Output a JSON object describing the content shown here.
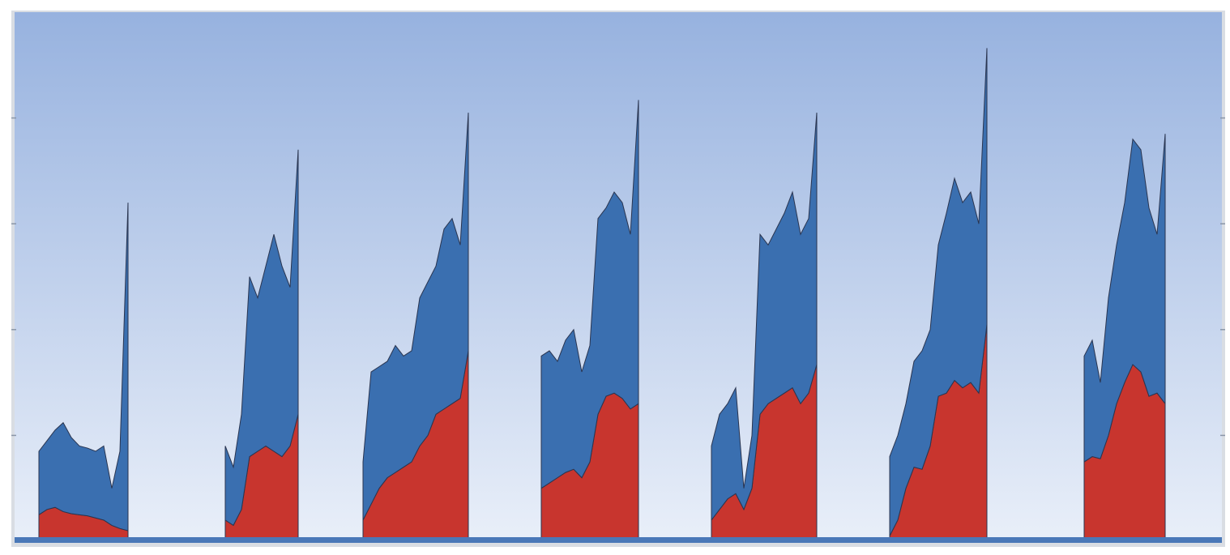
{
  "chart_data": {
    "type": "stacked-area",
    "x": [
      3,
      4,
      5,
      6,
      7,
      8,
      9,
      10,
      11,
      12,
      13,
      14,
      20,
      26,
      27,
      28,
      29,
      30,
      31,
      32,
      33,
      34,
      35,
      40,
      43,
      44,
      45,
      46,
      47,
      48,
      49,
      50,
      51,
      52,
      53,
      54,
      55,
      56,
      60,
      65,
      66,
      67,
      68,
      69,
      70,
      71,
      72,
      73,
      74,
      75,
      76,
      77,
      82,
      86,
      87,
      88,
      89,
      90,
      91,
      92,
      93,
      94,
      95,
      96,
      97,
      98,
      99,
      103,
      108,
      109,
      110,
      111,
      112,
      113,
      114,
      115,
      116,
      117,
      118,
      119,
      120,
      126,
      132,
      133,
      134,
      135,
      136,
      137,
      138,
      139,
      140,
      141,
      142
    ],
    "xlim": [
      0,
      149
    ],
    "ylim": [
      0,
      5
    ],
    "yticks": [
      1,
      2,
      3,
      4
    ],
    "series": [
      {
        "color": "#c8352e",
        "values": [
          0.25,
          0.3,
          0.32,
          0.28,
          0.26,
          0.25,
          0.24,
          0.22,
          0.2,
          0.15,
          0.12,
          0.1,
          null,
          0.2,
          0.15,
          0.3,
          0.8,
          0.85,
          0.9,
          0.85,
          0.8,
          0.9,
          1.2,
          null,
          0.2,
          0.35,
          0.5,
          0.6,
          0.65,
          0.7,
          0.75,
          0.9,
          1.0,
          1.2,
          1.25,
          1.3,
          1.35,
          1.8,
          null,
          0.5,
          0.55,
          0.6,
          0.65,
          0.68,
          0.6,
          0.75,
          1.2,
          1.37,
          1.4,
          1.35,
          1.25,
          1.3,
          null,
          0.2,
          0.3,
          0.4,
          0.45,
          0.3,
          0.5,
          1.2,
          1.3,
          1.35,
          1.4,
          1.45,
          1.3,
          1.4,
          1.67,
          null,
          0.05,
          0.2,
          0.5,
          0.7,
          0.68,
          0.9,
          1.37,
          1.4,
          1.52,
          1.45,
          1.5,
          1.4,
          2.05,
          null,
          0.75,
          0.8,
          0.78,
          1.0,
          1.3,
          1.5,
          1.67,
          1.6,
          1.37,
          1.4,
          1.3
        ]
      },
      {
        "color": "#3a6fb0",
        "values": [
          0.6,
          0.65,
          0.73,
          0.84,
          0.72,
          0.65,
          0.64,
          0.63,
          0.7,
          0.35,
          0.73,
          3.1,
          null,
          0.7,
          0.55,
          0.9,
          1.7,
          1.45,
          1.7,
          2.05,
          1.8,
          1.5,
          2.5,
          null,
          0.55,
          1.25,
          1.15,
          1.1,
          1.2,
          1.05,
          1.05,
          1.4,
          1.45,
          1.4,
          1.7,
          1.75,
          1.45,
          2.25,
          null,
          1.25,
          1.25,
          1.1,
          1.25,
          1.32,
          1.0,
          1.1,
          1.85,
          1.78,
          1.9,
          1.85,
          1.65,
          2.87,
          null,
          0.7,
          0.9,
          0.9,
          1.0,
          0.2,
          0.5,
          1.7,
          1.5,
          1.6,
          1.7,
          1.85,
          1.6,
          1.65,
          2.38,
          null,
          0.75,
          0.8,
          0.8,
          1.0,
          1.12,
          1.1,
          1.43,
          1.7,
          1.91,
          1.75,
          1.8,
          1.6,
          2.61,
          null,
          1.0,
          1.1,
          0.72,
          1.3,
          1.5,
          1.7,
          2.13,
          2.1,
          1.78,
          1.5,
          2.55
        ]
      }
    ]
  }
}
